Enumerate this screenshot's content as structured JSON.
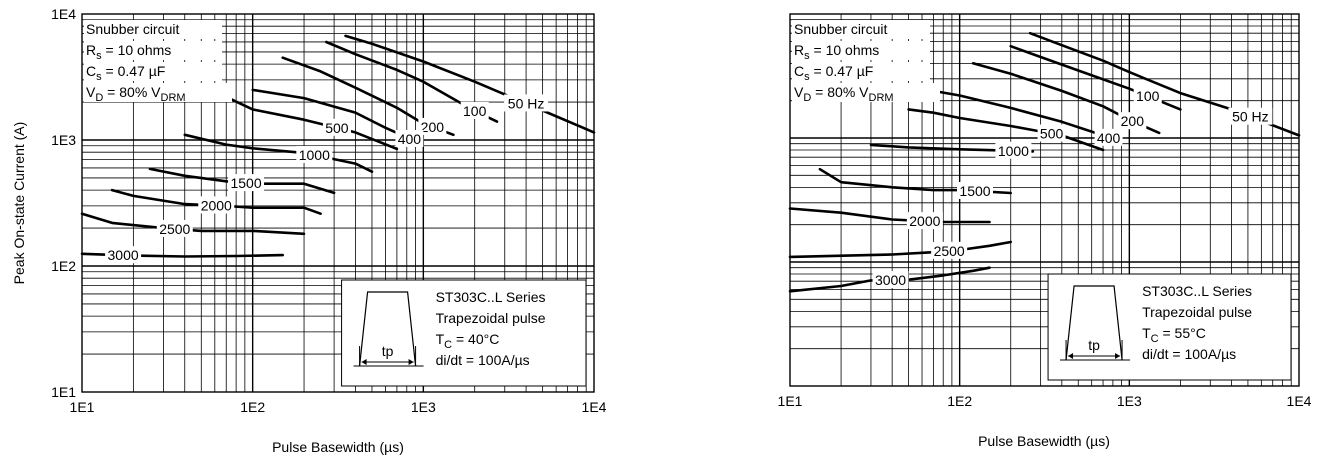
{
  "chart_data": [
    {
      "type": "line",
      "title": "",
      "xlabel": "Pulse Basewidth (µs)",
      "ylabel": "Peak On-state Current (A)",
      "xscale": "log",
      "yscale": "log",
      "xlim": [
        10,
        10000
      ],
      "ylim": [
        10,
        10000
      ],
      "xticks": [
        "1E1",
        "1E2",
        "1E3",
        "1E4"
      ],
      "yticks": [
        "1E1",
        "1E2",
        "1E3",
        "1E4"
      ],
      "grid": true,
      "conditions": [
        "Snubber circuit",
        "R",
        "s",
        "= 10 ohms",
        "C",
        "s",
        "= 0.47 µF",
        "V",
        "D",
        "= 80% V",
        "DRM"
      ],
      "notes": [
        "ST303C..L Series",
        "Trapezoidal pulse",
        "T",
        "C",
        "= 40°C",
        "di/dt = 100A/µs"
      ],
      "pulse_label": "tp",
      "series": [
        {
          "label": "50 Hz",
          "x": [
            350,
            500,
            1000,
            2000,
            4000,
            10000
          ],
          "y": [
            6700,
            5800,
            4200,
            2900,
            1950,
            1150
          ]
        },
        {
          "label": "100",
          "x": [
            270,
            400,
            700,
            1000,
            2000,
            2700
          ],
          "y": [
            6000,
            4800,
            3600,
            2900,
            1700,
            1400
          ]
        },
        {
          "label": "200",
          "x": [
            150,
            250,
            400,
            700,
            1000,
            1500
          ],
          "y": [
            4500,
            3500,
            2600,
            1800,
            1350,
            1100
          ]
        },
        {
          "label": "400",
          "x": [
            100,
            200,
            400,
            600,
            800,
            900
          ],
          "y": [
            2500,
            2150,
            1650,
            1250,
            1050,
            950
          ]
        },
        {
          "label": "500",
          "x": [
            70,
            100,
            200,
            400,
            700
          ],
          "y": [
            2200,
            1750,
            1450,
            1150,
            850
          ]
        },
        {
          "label": "1000",
          "x": [
            40,
            70,
            100,
            200,
            400,
            500
          ],
          "y": [
            1100,
            920,
            860,
            790,
            650,
            560
          ]
        },
        {
          "label": "1500",
          "x": [
            25,
            40,
            70,
            100,
            200,
            300
          ],
          "y": [
            590,
            520,
            470,
            450,
            450,
            380
          ]
        },
        {
          "label": "2000",
          "x": [
            15,
            20,
            40,
            70,
            100,
            200,
            250
          ],
          "y": [
            400,
            360,
            310,
            300,
            290,
            290,
            260
          ]
        },
        {
          "label": "2500",
          "x": [
            10,
            15,
            30,
            50,
            100,
            200
          ],
          "y": [
            260,
            220,
            200,
            190,
            190,
            180
          ]
        },
        {
          "label": "3000",
          "x": [
            10,
            20,
            40,
            80,
            150
          ],
          "y": [
            125,
            121,
            119,
            120,
            122
          ]
        }
      ]
    },
    {
      "type": "line",
      "title": "",
      "xlabel": "Pulse Basewidth (µs)",
      "ylabel": "",
      "xscale": "log",
      "yscale": "log",
      "xlim": [
        10,
        10000
      ],
      "ylim": [
        10,
        10000
      ],
      "xticks": [
        "1E1",
        "1E2",
        "1E3",
        "1E4"
      ],
      "yticks": [],
      "grid": true,
      "conditions": [
        "Snubber circuit",
        "R",
        "s",
        "= 10 ohms",
        "C",
        "s",
        "= 0.47 µF",
        "V",
        "D",
        "= 80% V",
        "DRM"
      ],
      "notes": [
        "ST303C..L Series",
        "Trapezoidal pulse",
        "T",
        "C",
        "= 55°C",
        "di/dt = 100A/µs"
      ],
      "pulse_label": "tp",
      "series": [
        {
          "label": "50 Hz",
          "x": [
            260,
            400,
            700,
            1000,
            2000,
            4000,
            10000
          ],
          "y": [
            7000,
            5600,
            4200,
            3400,
            2300,
            1700,
            1050
          ]
        },
        {
          "label": "100",
          "x": [
            200,
            300,
            500,
            1000,
            2000
          ],
          "y": [
            5500,
            4500,
            3500,
            2500,
            1700
          ]
        },
        {
          "label": "200",
          "x": [
            120,
            200,
            400,
            700,
            1000,
            1500
          ],
          "y": [
            4000,
            3300,
            2400,
            1800,
            1400,
            1100
          ]
        },
        {
          "label": "400",
          "x": [
            70,
            100,
            200,
            400,
            700,
            900
          ],
          "y": [
            2400,
            2200,
            1750,
            1350,
            1050,
            900
          ]
        },
        {
          "label": "500",
          "x": [
            50,
            70,
            100,
            200,
            400,
            700
          ],
          "y": [
            1700,
            1600,
            1450,
            1250,
            1050,
            800
          ]
        },
        {
          "label": "1000",
          "x": [
            30,
            50,
            100,
            200,
            270
          ],
          "y": [
            880,
            840,
            810,
            790,
            780
          ]
        },
        {
          "label": "1500",
          "x": [
            15,
            20,
            40,
            70,
            100,
            200
          ],
          "y": [
            560,
            440,
            400,
            380,
            380,
            360
          ]
        },
        {
          "label": "2000",
          "x": [
            10,
            20,
            40,
            80,
            150
          ],
          "y": [
            270,
            250,
            220,
            210,
            210
          ]
        },
        {
          "label": "2500",
          "x": [
            10,
            40,
            70,
            100,
            150,
            200
          ],
          "y": [
            110,
            115,
            120,
            125,
            135,
            145
          ]
        },
        {
          "label": "3000",
          "x": [
            10,
            20,
            30,
            50,
            80,
            120,
            150
          ],
          "y": [
            58,
            64,
            71,
            72,
            78,
            85,
            90
          ]
        }
      ]
    }
  ]
}
